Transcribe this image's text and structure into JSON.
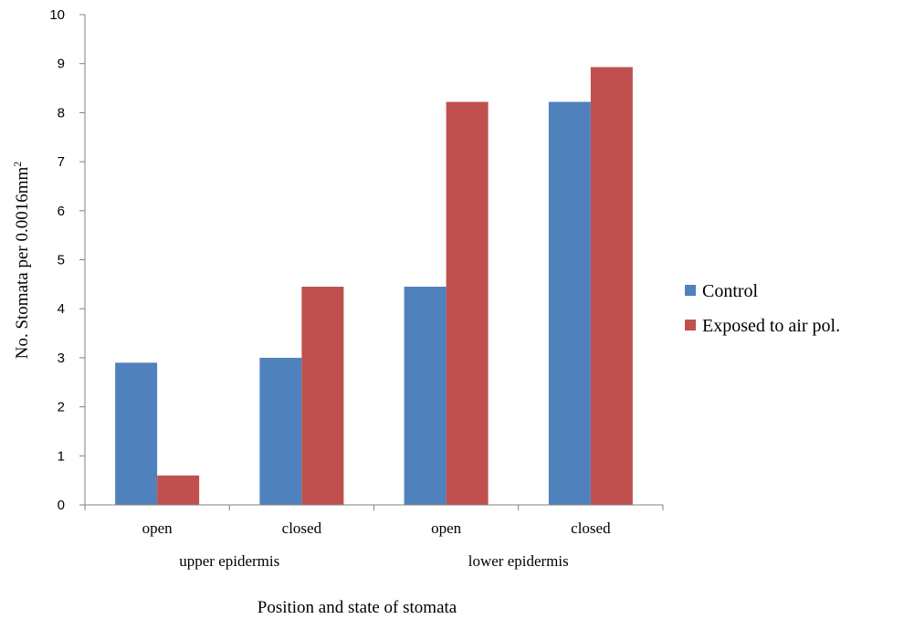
{
  "chart_data": {
    "type": "bar",
    "categories": [
      "open",
      "closed",
      "open",
      "closed"
    ],
    "groups": [
      {
        "label": "upper epidermis",
        "categories": [
          0,
          1
        ]
      },
      {
        "label": "lower epidermis",
        "categories": [
          2,
          3
        ]
      }
    ],
    "series": [
      {
        "name": "Control",
        "color": "#4F81BD",
        "values": [
          2.9,
          3.0,
          4.45,
          8.22
        ]
      },
      {
        "name": "Exposed to air pol.",
        "color": "#C0504D",
        "values": [
          0.6,
          4.45,
          8.22,
          8.93
        ]
      }
    ],
    "ylabel_main": "No. Stomata per 0.0016mm",
    "ylabel_superscript": "2",
    "xlabel": "Position and state of stomata",
    "ylim": [
      0,
      10
    ],
    "yticks": [
      0,
      1,
      2,
      3,
      4,
      5,
      6,
      7,
      8,
      9,
      10
    ],
    "grid": false,
    "legend_position": "right"
  }
}
